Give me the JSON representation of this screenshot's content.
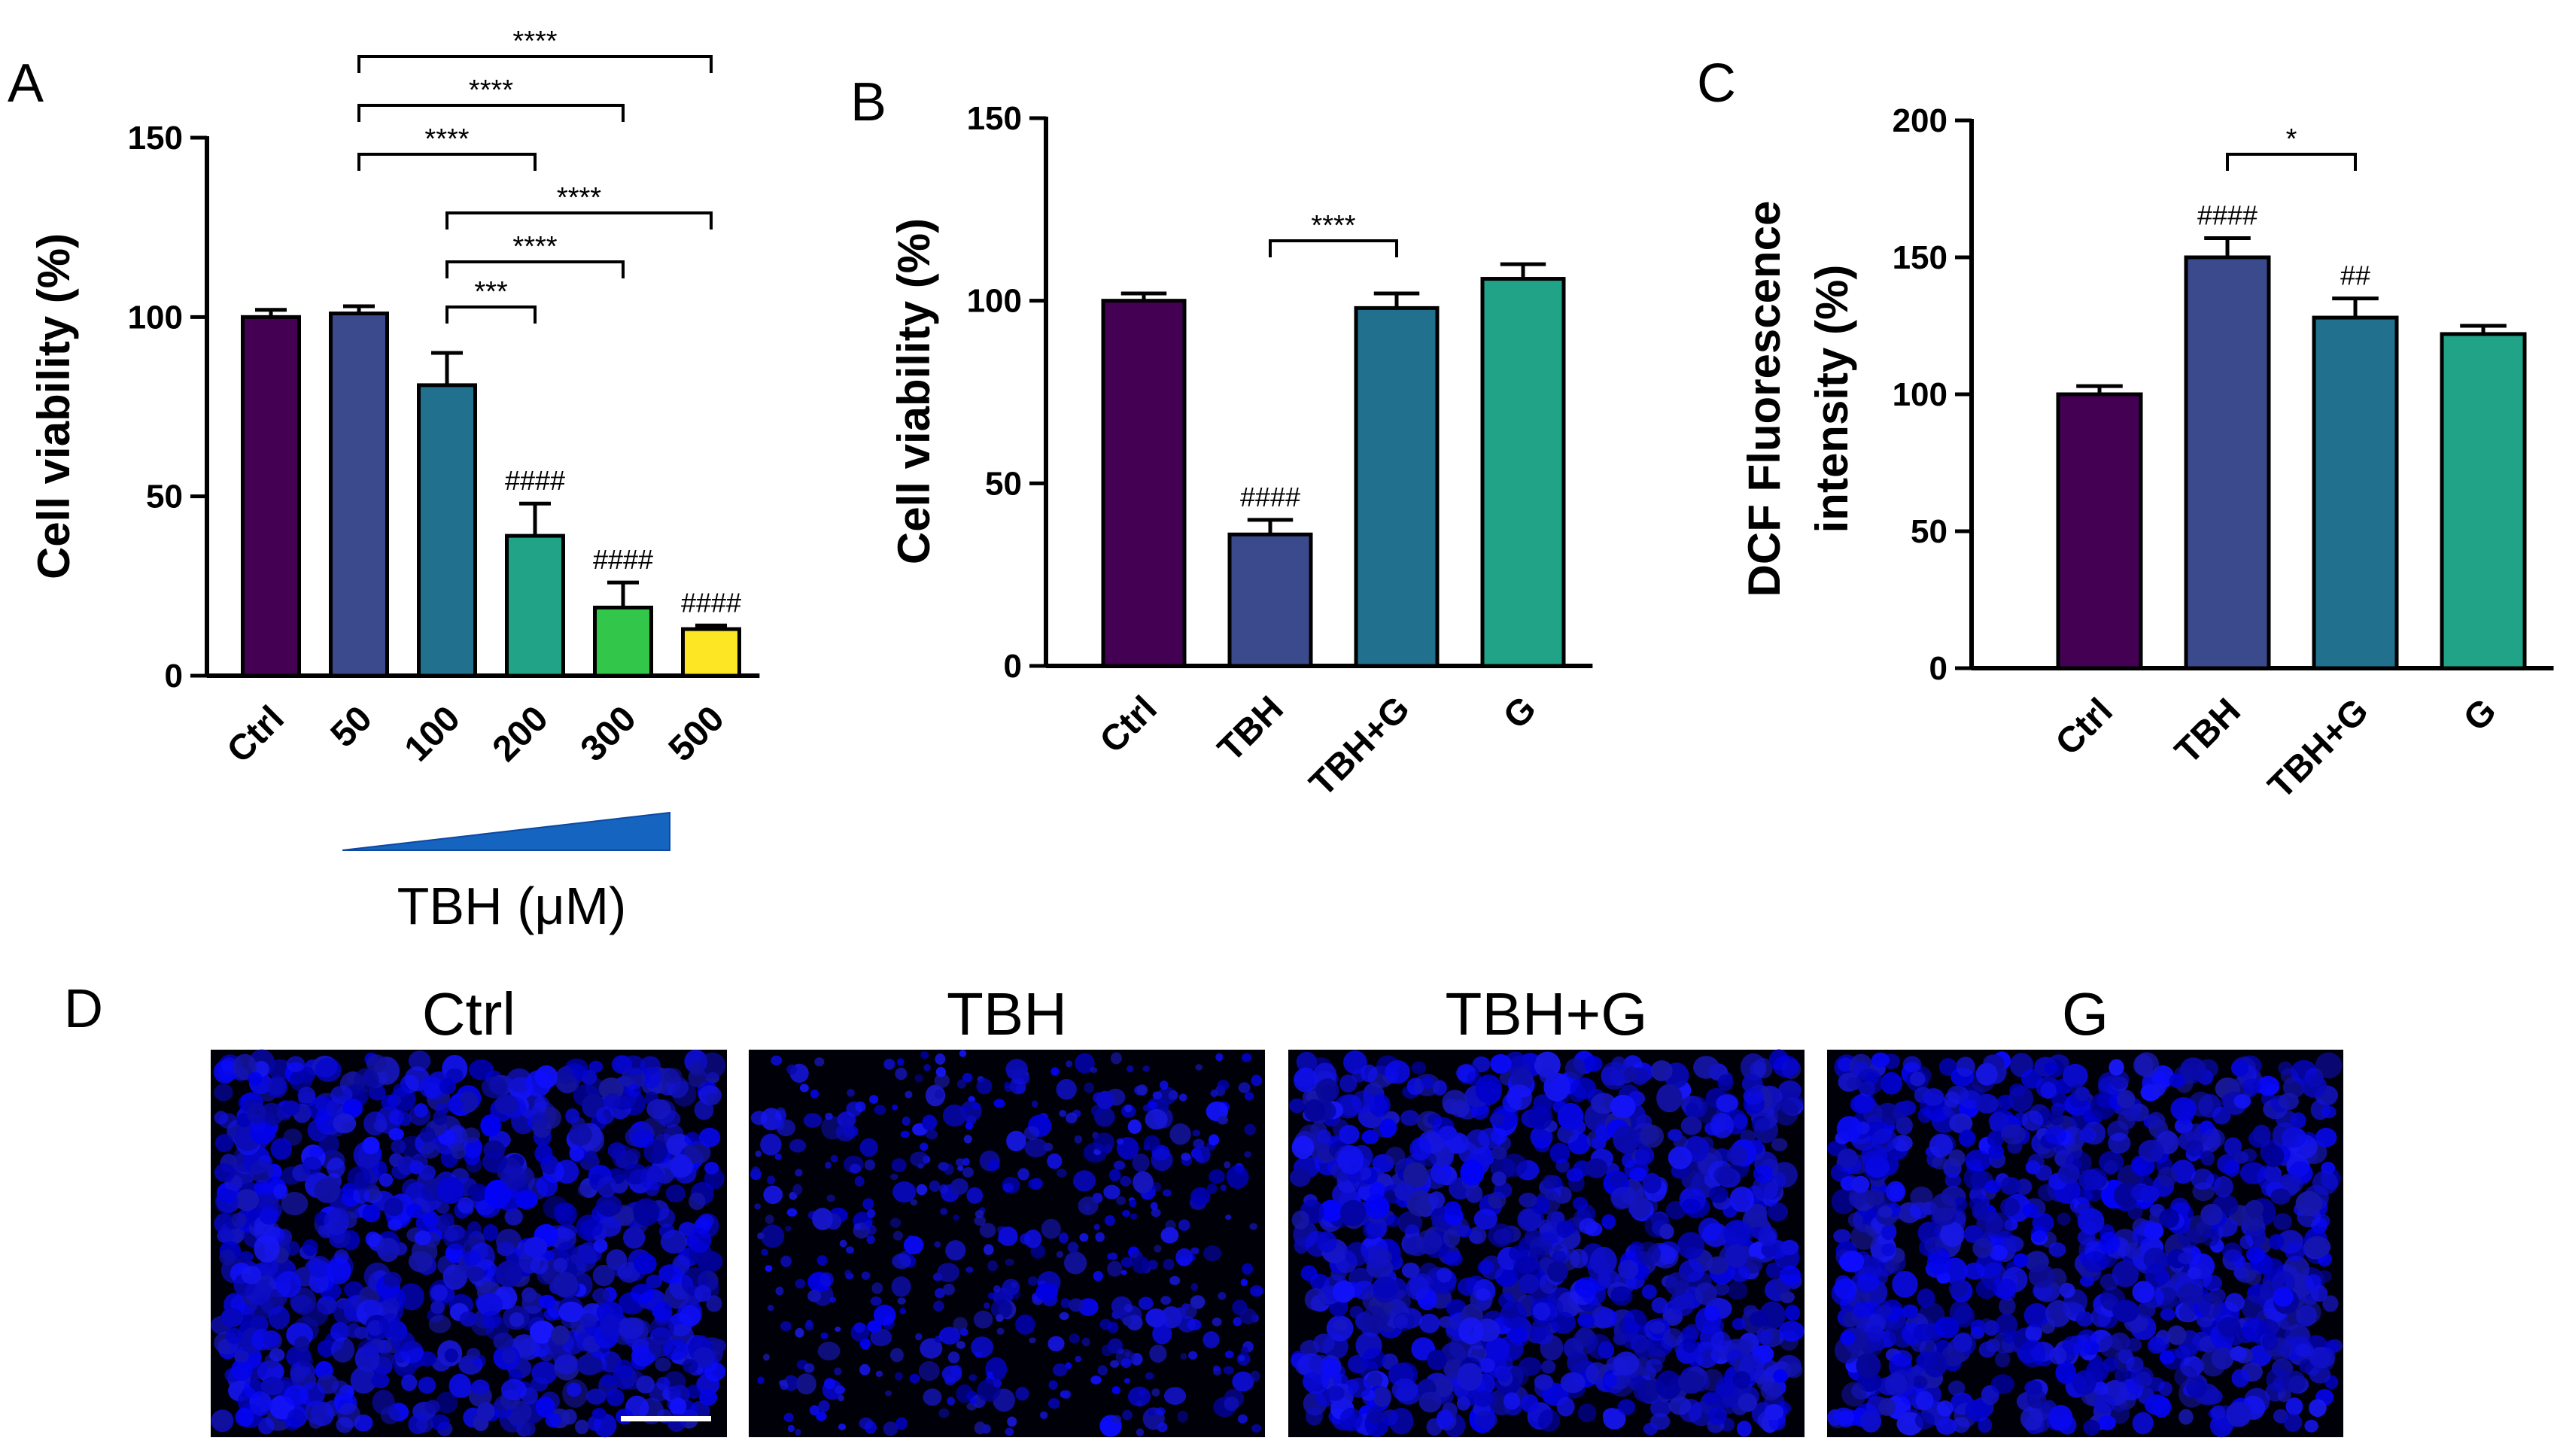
{
  "figure": {
    "panel_letters": [
      "A",
      "B",
      "C",
      "D"
    ],
    "tbh_gradient_label": "TBH (μM)"
  },
  "chart_data": [
    {
      "panel": "A",
      "type": "bar",
      "ylabel": "Cell viability (%)",
      "ylim": [
        0,
        150
      ],
      "yticks": [
        0,
        50,
        100,
        150
      ],
      "categories": [
        "Ctrl",
        "50",
        "100",
        "200",
        "300",
        "500"
      ],
      "values": [
        100,
        101,
        81,
        39,
        19,
        13
      ],
      "errors": [
        2,
        2,
        9,
        9,
        7,
        1
      ],
      "colors": [
        "#440154",
        "#3b4a8c",
        "#21708e",
        "#20a386",
        "#32c64a",
        "#fde725"
      ],
      "hash_labels": [
        "",
        "",
        "",
        "####",
        "####",
        "####"
      ],
      "comparisons": [
        {
          "from": 1,
          "to": 5,
          "label": "****"
        },
        {
          "from": 1,
          "to": 4,
          "label": "****"
        },
        {
          "from": 1,
          "to": 3,
          "label": "****"
        },
        {
          "from": 2,
          "to": 5,
          "label": "****"
        },
        {
          "from": 2,
          "to": 4,
          "label": "****"
        },
        {
          "from": 2,
          "to": 3,
          "label": "***"
        }
      ]
    },
    {
      "panel": "B",
      "type": "bar",
      "ylabel": "Cell viability (%)",
      "ylim": [
        0,
        150
      ],
      "yticks": [
        0,
        50,
        100,
        150
      ],
      "categories": [
        "Ctrl",
        "TBH",
        "TBH+G",
        "G"
      ],
      "values": [
        100,
        36,
        98,
        106
      ],
      "errors": [
        2,
        4,
        4,
        4
      ],
      "colors": [
        "#440154",
        "#3b4a8c",
        "#21708e",
        "#20a386"
      ],
      "hash_labels": [
        "",
        "####",
        "",
        ""
      ],
      "comparisons": [
        {
          "from": 1,
          "to": 2,
          "label": "****"
        }
      ]
    },
    {
      "panel": "C",
      "type": "bar",
      "ylabel_lines": [
        "DCF Fluorescence",
        "intensity (%)"
      ],
      "ylim": [
        0,
        200
      ],
      "yticks": [
        0,
        50,
        100,
        150,
        200
      ],
      "categories": [
        "Ctrl",
        "TBH",
        "TBH+G",
        "G"
      ],
      "values": [
        100,
        150,
        128,
        122
      ],
      "errors": [
        3,
        7,
        7,
        3
      ],
      "colors": [
        "#440154",
        "#3b4a8c",
        "#21708e",
        "#20a386"
      ],
      "hash_labels": [
        "",
        "####",
        "##",
        ""
      ],
      "comparisons": [
        {
          "from": 1,
          "to": 2,
          "label": "*"
        }
      ]
    }
  ],
  "micrographs": [
    {
      "title": "Ctrl",
      "seed": 11,
      "density": "dense"
    },
    {
      "title": "TBH",
      "seed": 23,
      "density": "sparse"
    },
    {
      "title": "TBH+G",
      "seed": 37,
      "density": "dense"
    },
    {
      "title": "G",
      "seed": 51,
      "density": "dense"
    }
  ]
}
